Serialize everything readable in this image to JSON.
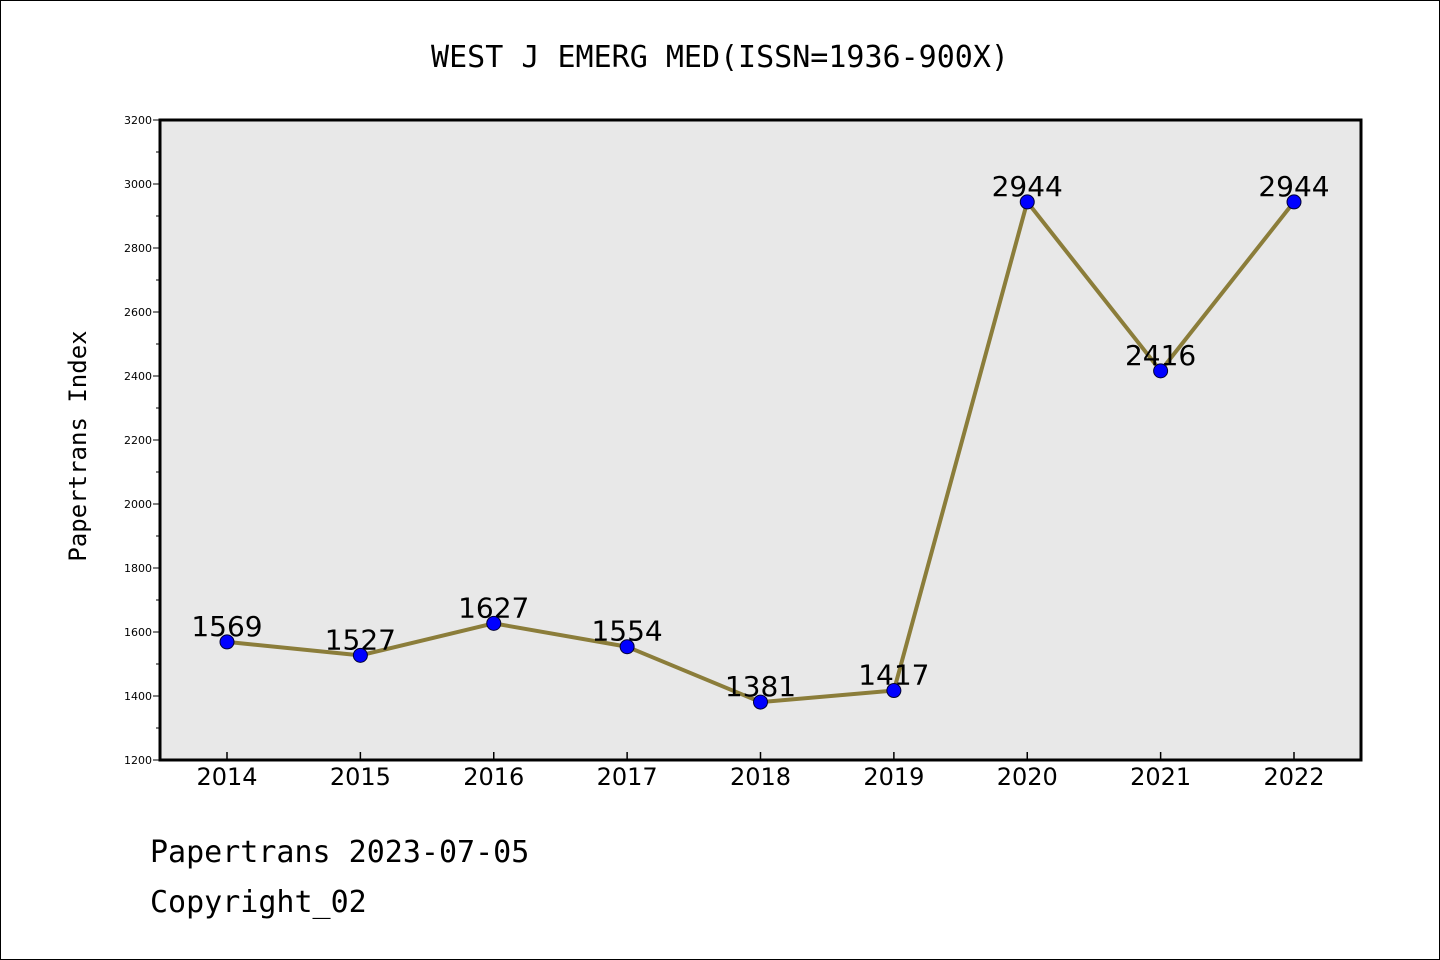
{
  "chart_data": {
    "type": "line",
    "title": "WEST J EMERG MED(ISSN=1936-900X)",
    "xlabel": "",
    "ylabel": "Papertrans Index",
    "categories": [
      "2014",
      "2015",
      "2016",
      "2017",
      "2018",
      "2019",
      "2020",
      "2021",
      "2022"
    ],
    "series": [
      {
        "values": [
          1569,
          1527,
          1627,
          1554,
          1381,
          1417,
          2944,
          2416,
          2944
        ],
        "labels": [
          "1569",
          "1527",
          "1627",
          "1554",
          "1381",
          "1417",
          "2944",
          "2416",
          "2944"
        ]
      }
    ],
    "ylim": [
      1200,
      3200
    ],
    "yticks": [
      "1200",
      "1400",
      "1600",
      "1800",
      "2000",
      "2200",
      "2400",
      "2600",
      "2800",
      "3000",
      "3200"
    ],
    "grid": false,
    "line_color": "#8b7d3a",
    "marker_color": "#0000ff",
    "plot_background": "#e8e8e8"
  },
  "footer": {
    "line1": "Papertrans 2023-07-05",
    "line2": "Copyright_02"
  }
}
